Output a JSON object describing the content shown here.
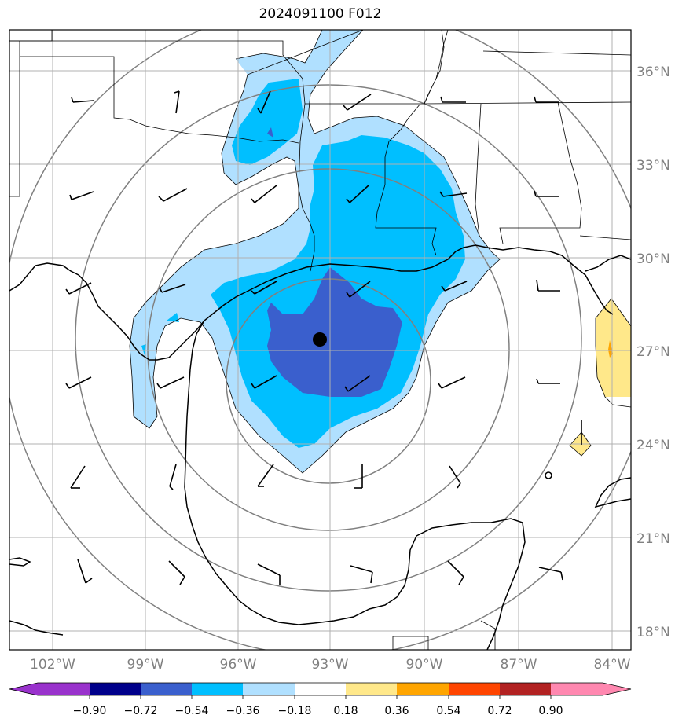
{
  "title": "2024091100 F012",
  "longitude_labels": [
    "102°W",
    "99°W",
    "96°W",
    "93°W",
    "90°W",
    "87°W",
    "84°W"
  ],
  "latitude_labels": [
    "36°N",
    "33°N",
    "30°N",
    "27°N",
    "24°N",
    "21°N",
    "18°N"
  ],
  "colorbar": {
    "ticks": [
      "−0.90",
      "−0.72",
      "−0.54",
      "−0.36",
      "−0.18",
      "0.18",
      "0.36",
      "0.54",
      "0.72",
      "0.90"
    ],
    "colors": [
      "#9932cc",
      "#00008b",
      "#3a5fcd",
      "#00bfff",
      "#b0e0ff",
      "#ffffff",
      "#ffe88a",
      "#ffa500",
      "#ff4500",
      "#b22222",
      "#ff88b0"
    ]
  },
  "storm_center": {
    "lon": -93.3,
    "lat": 27.4
  },
  "range_rings": true,
  "wind_barbs": true
}
